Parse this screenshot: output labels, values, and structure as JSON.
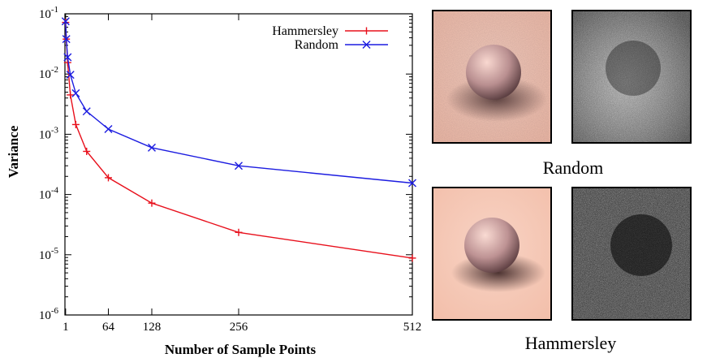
{
  "chart_data": {
    "type": "line",
    "xlabel": "Number of Sample Points",
    "ylabel": "Variance",
    "x_scale": "linear",
    "y_scale": "log",
    "xlim": [
      0,
      512
    ],
    "ylim": [
      1e-06,
      0.1
    ],
    "x_ticks": [
      "1",
      "64",
      "128",
      "256",
      "512"
    ],
    "y_ticks": [
      {
        "base": "10",
        "exp": "-1"
      },
      {
        "base": "10",
        "exp": "-2"
      },
      {
        "base": "10",
        "exp": "-3"
      },
      {
        "base": "10",
        "exp": "-4"
      },
      {
        "base": "10",
        "exp": "-5"
      },
      {
        "base": "10",
        "exp": "-6"
      }
    ],
    "legend_position": "top-right",
    "series": [
      {
        "name": "Hammersley",
        "color": "#e8101c",
        "marker": "plus",
        "x": [
          1,
          2,
          4,
          8,
          16,
          32,
          64,
          128,
          256,
          512
        ],
        "y": [
          0.072,
          0.038,
          0.0155,
          0.0045,
          0.00145,
          0.00052,
          0.00019,
          7.2e-05,
          2.35e-05,
          8.8e-06
        ]
      },
      {
        "name": "Random",
        "color": "#1c1ce0",
        "marker": "x",
        "x": [
          1,
          2,
          4,
          8,
          16,
          32,
          64,
          128,
          256,
          512
        ],
        "y": [
          0.075,
          0.038,
          0.019,
          0.0097,
          0.0048,
          0.0024,
          0.00122,
          0.0006,
          0.0003,
          0.000155
        ]
      }
    ]
  },
  "images": {
    "caption_random": "Random",
    "caption_hammersley": "Hammersley"
  }
}
